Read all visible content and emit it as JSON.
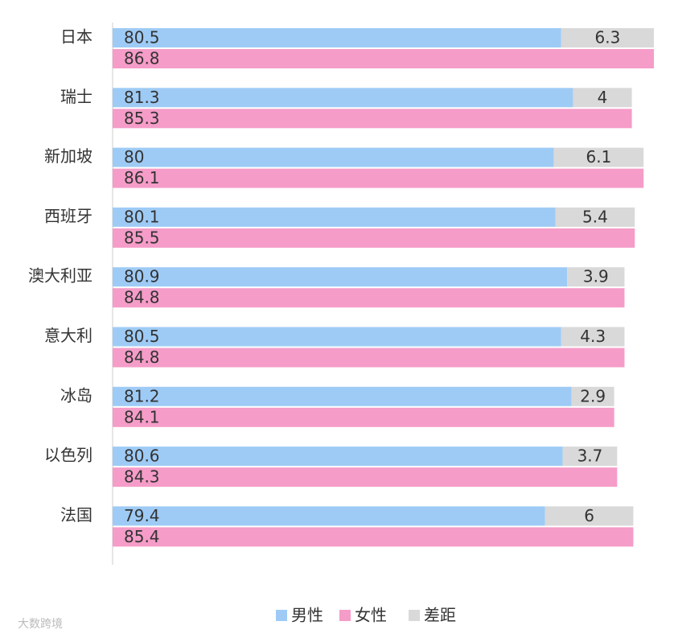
{
  "chart_data": {
    "type": "bar",
    "orientation": "horizontal",
    "categories": [
      "日本",
      "瑞士",
      "新加坡",
      "西班牙",
      "澳大利亚",
      "意大利",
      "冰岛",
      "以色列",
      "法国"
    ],
    "series": [
      {
        "name": "男性",
        "color": "#9ecbf5",
        "stack": "a",
        "values": [
          80.5,
          81.3,
          80,
          80.1,
          80.9,
          80.5,
          81.2,
          80.6,
          79.4
        ]
      },
      {
        "name": "女性",
        "color": "#f59cc8",
        "stack": "b",
        "values": [
          86.8,
          85.3,
          86.1,
          85.5,
          84.8,
          84.8,
          84.1,
          84.3,
          85.4
        ]
      },
      {
        "name": "差距",
        "color": "#d9d9d9",
        "stack": "a",
        "values": [
          6.3,
          4,
          6.1,
          5.4,
          3.9,
          4.3,
          2.9,
          3.7,
          6
        ]
      }
    ],
    "xlim": [
      50,
      88
    ],
    "legend": "bottom",
    "watermark": "大数跨境"
  }
}
